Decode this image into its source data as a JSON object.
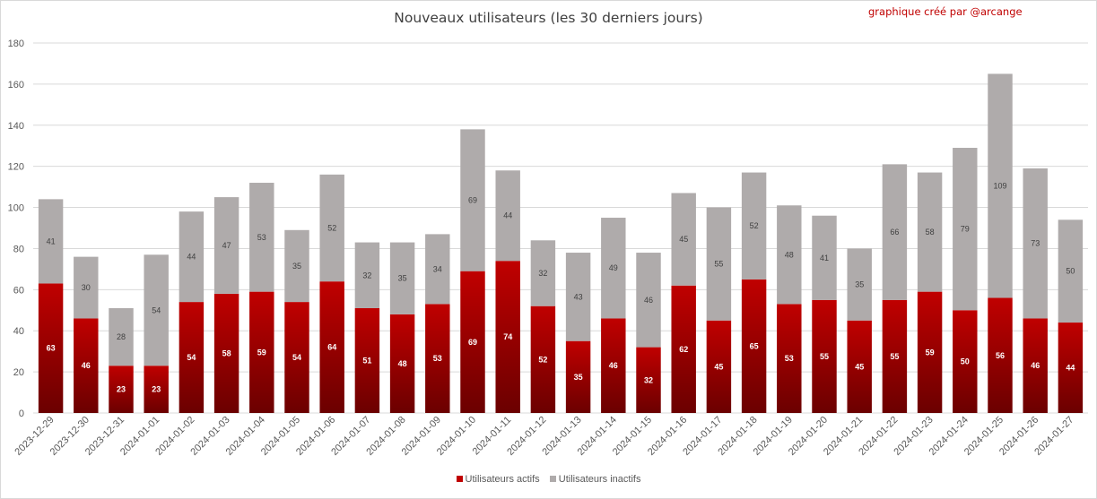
{
  "title": "Nouveaux utilisateurs  (les 30 derniers  jours)",
  "credit": "graphique créé par @arcange",
  "colors": {
    "active": "#c00000",
    "active_dark": "#6b0000",
    "inactive": "#afabab",
    "grid": "#d9d9d9"
  },
  "chart_data": {
    "type": "bar",
    "stacked": true,
    "title": "Nouveaux utilisateurs  (les 30 derniers  jours)",
    "xlabel": "",
    "ylabel": "",
    "ylim": [
      0,
      180
    ],
    "yticks": [
      "0",
      "20",
      "40",
      "60",
      "80",
      "100",
      "120",
      "140",
      "160",
      "180"
    ],
    "grid": true,
    "legend_position": "bottom",
    "categories": [
      "2023-12-29",
      "2023-12-30",
      "2023-12-31",
      "2024-01-01",
      "2024-01-02",
      "2024-01-03",
      "2024-01-04",
      "2024-01-05",
      "2024-01-06",
      "2024-01-07",
      "2024-01-08",
      "2024-01-09",
      "2024-01-10",
      "2024-01-11",
      "2024-01-12",
      "2024-01-13",
      "2024-01-14",
      "2024-01-15",
      "2024-01-16",
      "2024-01-17",
      "2024-01-18",
      "2024-01-19",
      "2024-01-20",
      "2024-01-21",
      "2024-01-22",
      "2024-01-23",
      "2024-01-24",
      "2024-01-25",
      "2024-01-26",
      "2024-01-27"
    ],
    "series": [
      {
        "name": "Utilisateurs actifs",
        "values": [
          63,
          46,
          23,
          23,
          54,
          58,
          59,
          54,
          64,
          51,
          48,
          53,
          69,
          74,
          52,
          35,
          46,
          32,
          62,
          45,
          65,
          53,
          55,
          45,
          55,
          59,
          50,
          56,
          46,
          44
        ]
      },
      {
        "name": "Utilisateurs inactifs",
        "values": [
          41,
          30,
          28,
          54,
          44,
          47,
          53,
          35,
          52,
          32,
          35,
          34,
          69,
          44,
          32,
          43,
          49,
          46,
          45,
          55,
          52,
          48,
          41,
          35,
          66,
          58,
          79,
          109,
          73,
          50
        ]
      }
    ]
  }
}
